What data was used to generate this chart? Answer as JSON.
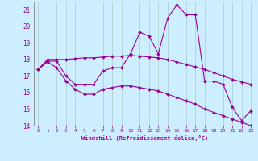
{
  "xlabel": "Windchill (Refroidissement éolien,°C)",
  "background_color": "#cceeff",
  "grid_color": "#aacccc",
  "line_color": "#990099",
  "xlim": [
    -0.5,
    23.5
  ],
  "ylim": [
    14.0,
    21.5
  ],
  "yticks": [
    14,
    15,
    16,
    17,
    18,
    19,
    20,
    21
  ],
  "xticks": [
    0,
    1,
    2,
    3,
    4,
    5,
    6,
    7,
    8,
    9,
    10,
    11,
    12,
    13,
    14,
    15,
    16,
    17,
    18,
    19,
    20,
    21,
    22,
    23
  ],
  "series1_x": [
    0,
    1,
    2,
    3,
    4,
    5,
    6,
    7,
    8,
    9,
    10,
    11,
    12,
    13,
    14,
    15,
    16,
    17,
    18,
    19,
    20,
    21,
    22,
    23
  ],
  "series1_y": [
    17.4,
    17.9,
    17.9,
    17.0,
    16.5,
    16.5,
    16.5,
    17.3,
    17.5,
    17.5,
    18.35,
    19.65,
    19.4,
    18.35,
    20.5,
    21.3,
    20.7,
    20.7,
    16.7,
    16.7,
    16.5,
    15.1,
    14.3,
    14.9
  ],
  "series2_x": [
    0,
    1,
    2,
    3,
    4,
    5,
    6,
    7,
    8,
    9,
    10,
    11,
    12,
    13,
    14,
    15,
    16,
    17,
    18,
    19,
    20,
    21,
    22,
    23
  ],
  "series2_y": [
    17.4,
    18.0,
    18.0,
    18.0,
    18.05,
    18.1,
    18.1,
    18.15,
    18.2,
    18.2,
    18.25,
    18.2,
    18.15,
    18.1,
    18.0,
    17.85,
    17.7,
    17.55,
    17.4,
    17.2,
    17.0,
    16.8,
    16.65,
    16.5
  ],
  "series3_x": [
    0,
    1,
    2,
    3,
    4,
    5,
    6,
    7,
    8,
    9,
    10,
    11,
    12,
    13,
    14,
    15,
    16,
    17,
    18,
    19,
    20,
    21,
    22,
    23
  ],
  "series3_y": [
    17.4,
    17.85,
    17.5,
    16.7,
    16.2,
    15.9,
    15.9,
    16.2,
    16.3,
    16.4,
    16.4,
    16.3,
    16.2,
    16.1,
    15.9,
    15.7,
    15.5,
    15.3,
    15.0,
    14.8,
    14.6,
    14.4,
    14.2,
    14.0
  ]
}
